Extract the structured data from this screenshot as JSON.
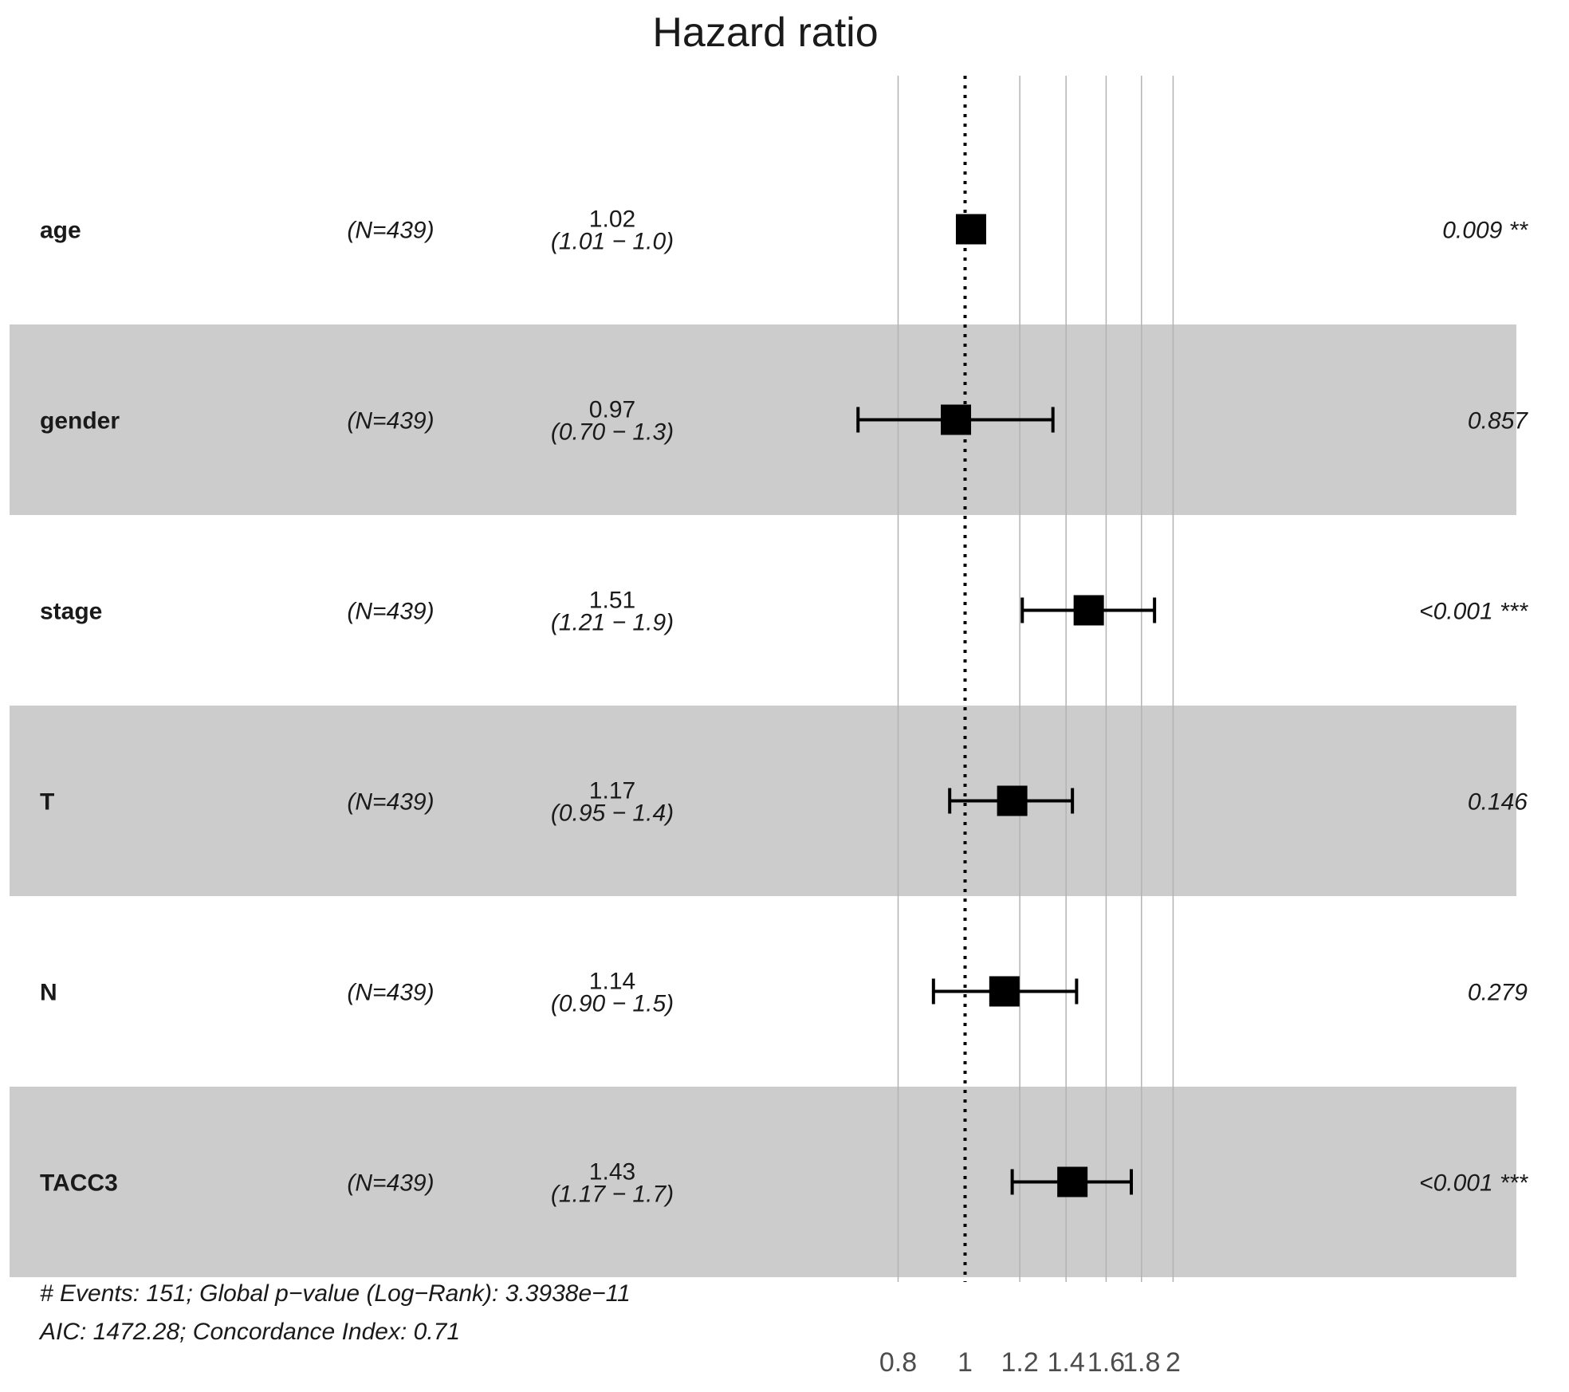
{
  "chart_data": {
    "type": "forest",
    "title": "Hazard ratio",
    "x_scale": "log",
    "xlim": [
      0.68,
      2.2
    ],
    "reference_line": 1,
    "x_ticks": [
      0.8,
      1,
      1.2,
      1.4,
      1.6,
      1.8,
      2
    ],
    "x_tick_labels": [
      "0.8",
      "1",
      "1.2",
      "1.4",
      "1.6",
      "1.8",
      "2"
    ],
    "rows": [
      {
        "variable": "age",
        "n": "(N=439)",
        "hr": 1.02,
        "lower": 1.01,
        "upper": 1.04,
        "hr_label": "1.02",
        "ci_label": "(1.01 − 1.0)",
        "p_label": "0.009 **",
        "shaded": false
      },
      {
        "variable": "gender",
        "n": "(N=439)",
        "hr": 0.97,
        "lower": 0.7,
        "upper": 1.34,
        "hr_label": "0.97",
        "ci_label": "(0.70 − 1.3)",
        "p_label": "0.857",
        "shaded": true
      },
      {
        "variable": "stage",
        "n": "(N=439)",
        "hr": 1.51,
        "lower": 1.21,
        "upper": 1.88,
        "hr_label": "1.51",
        "ci_label": "(1.21 − 1.9)",
        "p_label": "<0.001 ***",
        "shaded": false
      },
      {
        "variable": "T",
        "n": "(N=439)",
        "hr": 1.17,
        "lower": 0.95,
        "upper": 1.43,
        "hr_label": "1.17",
        "ci_label": "(0.95 − 1.4)",
        "p_label": "0.146",
        "shaded": true
      },
      {
        "variable": "N",
        "n": "(N=439)",
        "hr": 1.14,
        "lower": 0.9,
        "upper": 1.45,
        "hr_label": "1.14",
        "ci_label": "(0.90 − 1.5)",
        "p_label": "0.279",
        "shaded": false
      },
      {
        "variable": "TACC3",
        "n": "(N=439)",
        "hr": 1.43,
        "lower": 1.17,
        "upper": 1.74,
        "hr_label": "1.43",
        "ci_label": "(1.17 − 1.7)",
        "p_label": "<0.001 ***",
        "shaded": true
      }
    ],
    "footer": [
      "# Events: 151; Global p−value (Log−Rank): 3.3938e−11",
      "AIC: 1472.28; Concordance Index: 0.71"
    ],
    "colors": {
      "shade": "#cccccc",
      "grid": "#b3b3b3",
      "mark": "#000000"
    }
  }
}
